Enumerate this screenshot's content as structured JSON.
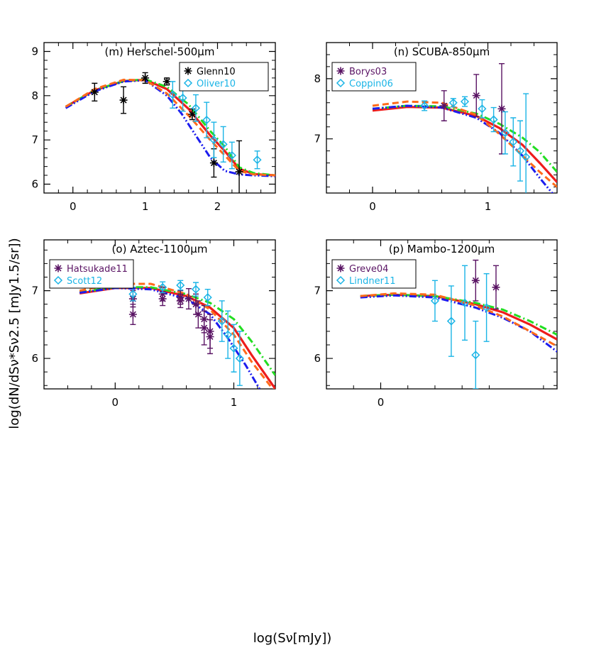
{
  "figure": {
    "ylabel": "log(dN/dSν*Sν2.5 [mJy1.5/sr])",
    "xlabel": "log(Sν[mJy])"
  },
  "colors": {
    "red": "#ee1c1c",
    "green": "#22dd22",
    "blue": "#1c1cee",
    "orange": "#ff6a1a",
    "black": "#000000",
    "cyan": "#1ab4e6",
    "purple": "#5a1464"
  },
  "chart_data": [
    {
      "type": "line",
      "title": "(m) Herschel-500μm",
      "xlim": [
        -0.4,
        2.8
      ],
      "ylim": [
        5.8,
        9.2
      ],
      "xticks": [
        0,
        1,
        2
      ],
      "yticks": [
        6,
        7,
        8,
        9
      ],
      "legend_position": "top-right",
      "series": [
        {
          "style": "red-solid",
          "x": [
            -0.1,
            0.3,
            0.7,
            1.0,
            1.3,
            1.6,
            1.9,
            2.1,
            2.3,
            2.5,
            2.8
          ],
          "y": [
            7.75,
            8.12,
            8.33,
            8.36,
            8.15,
            7.7,
            7.1,
            6.75,
            6.35,
            6.23,
            6.2
          ]
        },
        {
          "style": "green-dashdot",
          "x": [
            -0.1,
            0.3,
            0.7,
            1.0,
            1.3,
            1.6,
            1.9,
            2.1,
            2.3,
            2.5,
            2.8
          ],
          "y": [
            7.75,
            8.12,
            8.33,
            8.37,
            8.2,
            7.8,
            7.2,
            6.85,
            6.38,
            6.25,
            6.2
          ]
        },
        {
          "style": "blue-dashdotdot",
          "x": [
            -0.1,
            0.3,
            0.7,
            1.0,
            1.3,
            1.5,
            1.7,
            1.9,
            2.1,
            2.3,
            2.5,
            2.8
          ],
          "y": [
            7.72,
            8.1,
            8.32,
            8.35,
            8.0,
            7.6,
            7.1,
            6.6,
            6.3,
            6.22,
            6.2,
            6.18
          ]
        },
        {
          "style": "orange-dashed",
          "x": [
            -0.1,
            0.3,
            0.7,
            1.0,
            1.3,
            1.6,
            1.9,
            2.1,
            2.3,
            2.5,
            2.8
          ],
          "y": [
            7.75,
            8.15,
            8.36,
            8.35,
            8.05,
            7.55,
            7.0,
            6.65,
            6.3,
            6.22,
            6.2
          ]
        }
      ],
      "points": [
        {
          "name": "Glenn10",
          "marker": "asterisk",
          "color": "black",
          "data": [
            [
              0.3,
              8.08,
              0.2
            ],
            [
              0.7,
              7.9,
              0.3
            ],
            [
              1.0,
              8.4,
              0.12
            ],
            [
              1.3,
              8.32,
              0.08
            ],
            [
              1.65,
              7.58,
              0.12
            ],
            [
              1.95,
              6.48,
              0.32
            ],
            [
              2.3,
              6.28,
              0.7
            ]
          ]
        },
        {
          "name": "Oliver10",
          "marker": "diamond",
          "color": "cyan",
          "data": [
            [
              1.38,
              8.02,
              0.3
            ],
            [
              1.52,
              7.95,
              0.3
            ],
            [
              1.7,
              7.72,
              0.3
            ],
            [
              1.85,
              7.45,
              0.4
            ],
            [
              1.95,
              7.0,
              0.4
            ],
            [
              2.08,
              6.9,
              0.4
            ],
            [
              2.2,
              6.65,
              0.3
            ],
            [
              2.55,
              6.55,
              0.2
            ]
          ]
        }
      ]
    },
    {
      "type": "line",
      "title": "(n) SCUBA-850μm",
      "xlim": [
        -0.4,
        1.6
      ],
      "ylim": [
        6.1,
        8.6
      ],
      "xticks": [
        0,
        1
      ],
      "yticks": [
        7,
        8
      ],
      "legend_position": "top-left",
      "series": [
        {
          "style": "red-solid",
          "x": [
            0.0,
            0.3,
            0.6,
            0.9,
            1.1,
            1.3,
            1.45,
            1.6
          ],
          "y": [
            7.47,
            7.53,
            7.52,
            7.38,
            7.18,
            6.9,
            6.6,
            6.28
          ]
        },
        {
          "style": "green-dashdot",
          "x": [
            0.0,
            0.3,
            0.6,
            0.9,
            1.1,
            1.3,
            1.45,
            1.6
          ],
          "y": [
            7.5,
            7.55,
            7.54,
            7.42,
            7.25,
            7.02,
            6.78,
            6.45
          ]
        },
        {
          "style": "blue-dashdotdot",
          "x": [
            0.0,
            0.3,
            0.6,
            0.9,
            1.1,
            1.3,
            1.45,
            1.6
          ],
          "y": [
            7.5,
            7.55,
            7.52,
            7.35,
            7.1,
            6.72,
            6.35,
            6.0
          ]
        },
        {
          "style": "orange-dashed",
          "x": [
            0.0,
            0.3,
            0.6,
            0.9,
            1.1,
            1.3,
            1.45,
            1.6
          ],
          "y": [
            7.55,
            7.62,
            7.6,
            7.4,
            7.08,
            6.72,
            6.45,
            6.2
          ]
        }
      ],
      "points": [
        {
          "name": "Borys03",
          "marker": "asterisk",
          "color": "purple",
          "data": [
            [
              0.62,
              7.55,
              0.25
            ],
            [
              0.9,
              7.72,
              0.35
            ],
            [
              1.12,
              7.5,
              0.75
            ]
          ]
        },
        {
          "name": "Coppin06",
          "marker": "diamond",
          "color": "cyan",
          "data": [
            [
              0.45,
              7.55,
              0.08
            ],
            [
              0.7,
              7.6,
              0.07
            ],
            [
              0.8,
              7.62,
              0.08
            ],
            [
              0.95,
              7.5,
              0.15
            ],
            [
              1.05,
              7.32,
              0.2
            ],
            [
              1.15,
              7.1,
              0.35
            ],
            [
              1.22,
              6.95,
              0.4
            ],
            [
              1.28,
              6.8,
              0.5
            ],
            [
              1.33,
              6.7,
              1.05
            ]
          ]
        }
      ]
    },
    {
      "type": "line",
      "title": "(o) Aztec-1100μm",
      "xlim": [
        -0.6,
        1.35
      ],
      "ylim": [
        5.55,
        7.75
      ],
      "xticks": [
        0,
        1
      ],
      "yticks": [
        6,
        7
      ],
      "legend_position": "top-left",
      "series": [
        {
          "style": "red-solid",
          "x": [
            -0.3,
            0.0,
            0.3,
            0.6,
            0.8,
            1.0,
            1.15,
            1.35
          ],
          "y": [
            6.96,
            7.04,
            7.04,
            6.92,
            6.75,
            6.45,
            6.05,
            5.55
          ]
        },
        {
          "style": "green-dashdot",
          "x": [
            -0.3,
            0.0,
            0.3,
            0.6,
            0.8,
            1.0,
            1.15,
            1.35
          ],
          "y": [
            6.98,
            7.05,
            7.05,
            6.95,
            6.82,
            6.58,
            6.25,
            5.75
          ]
        },
        {
          "style": "blue-dashdotdot",
          "x": [
            -0.3,
            0.0,
            0.3,
            0.6,
            0.8,
            0.95,
            1.1,
            1.25
          ],
          "y": [
            6.97,
            7.04,
            7.02,
            6.88,
            6.65,
            6.3,
            5.9,
            5.45
          ]
        },
        {
          "style": "orange-dashed",
          "x": [
            -0.3,
            0.0,
            0.3,
            0.6,
            0.8,
            1.0,
            1.15,
            1.35
          ],
          "y": [
            7.0,
            7.1,
            7.1,
            6.95,
            6.72,
            6.35,
            5.95,
            5.5
          ]
        }
      ],
      "points": [
        {
          "name": "Hatsukade11",
          "marker": "asterisk",
          "color": "purple",
          "data": [
            [
              0.15,
              6.88,
              0.12
            ],
            [
              0.15,
              6.65,
              0.15
            ],
            [
              0.4,
              6.95,
              0.1
            ],
            [
              0.4,
              6.88,
              0.1
            ],
            [
              0.55,
              6.9,
              0.1
            ],
            [
              0.55,
              6.85,
              0.1
            ],
            [
              0.62,
              6.88,
              0.15
            ],
            [
              0.68,
              6.8,
              0.15
            ],
            [
              0.7,
              6.65,
              0.2
            ],
            [
              0.75,
              6.58,
              0.2
            ],
            [
              0.75,
              6.45,
              0.25
            ],
            [
              0.8,
              6.4,
              0.25
            ],
            [
              0.8,
              6.32,
              0.25
            ]
          ]
        },
        {
          "name": "Scott12",
          "marker": "diamond",
          "color": "cyan",
          "data": [
            [
              0.15,
              6.95,
              0.1
            ],
            [
              0.4,
              7.05,
              0.08
            ],
            [
              0.55,
              7.08,
              0.07
            ],
            [
              0.68,
              7.02,
              0.1
            ],
            [
              0.78,
              6.9,
              0.12
            ],
            [
              0.9,
              6.55,
              0.3
            ],
            [
              0.95,
              6.35,
              0.35
            ],
            [
              1.0,
              6.15,
              0.35
            ],
            [
              1.05,
              6.0,
              0.4
            ]
          ]
        }
      ]
    },
    {
      "type": "line",
      "title": "(p) Mambo-1200μm",
      "xlim": [
        -0.4,
        1.3
      ],
      "ylim": [
        5.55,
        7.75
      ],
      "xticks": [
        0
      ],
      "yticks": [
        6,
        7
      ],
      "legend_position": "top-left",
      "series": [
        {
          "style": "red-solid",
          "x": [
            -0.15,
            0.1,
            0.4,
            0.7,
            0.9,
            1.1,
            1.3
          ],
          "y": [
            6.92,
            6.94,
            6.92,
            6.8,
            6.68,
            6.5,
            6.28
          ]
        },
        {
          "style": "green-dashdot",
          "x": [
            -0.15,
            0.1,
            0.4,
            0.7,
            0.9,
            1.1,
            1.3
          ],
          "y": [
            6.92,
            6.94,
            6.92,
            6.82,
            6.72,
            6.55,
            6.35
          ]
        },
        {
          "style": "blue-dashdotdot",
          "x": [
            -0.15,
            0.1,
            0.4,
            0.7,
            0.9,
            1.1,
            1.3
          ],
          "y": [
            6.9,
            6.93,
            6.9,
            6.75,
            6.6,
            6.4,
            6.1
          ]
        },
        {
          "style": "orange-dashed",
          "x": [
            -0.15,
            0.1,
            0.4,
            0.7,
            0.9,
            1.1,
            1.3
          ],
          "y": [
            6.92,
            6.96,
            6.94,
            6.78,
            6.62,
            6.4,
            6.18
          ]
        }
      ],
      "points": [
        {
          "name": "Greve04",
          "marker": "asterisk",
          "color": "purple",
          "data": [
            [
              0.7,
              7.15,
              0.3
            ],
            [
              0.85,
              7.05,
              0.32
            ]
          ]
        },
        {
          "name": "Lindner11",
          "marker": "diamond",
          "color": "cyan",
          "data": [
            [
              0.4,
              6.85,
              0.3
            ],
            [
              0.52,
              6.55,
              0.52
            ],
            [
              0.62,
              6.82,
              0.55
            ],
            [
              0.7,
              6.05,
              0.5
            ],
            [
              0.78,
              6.75,
              0.5
            ]
          ]
        }
      ]
    }
  ]
}
